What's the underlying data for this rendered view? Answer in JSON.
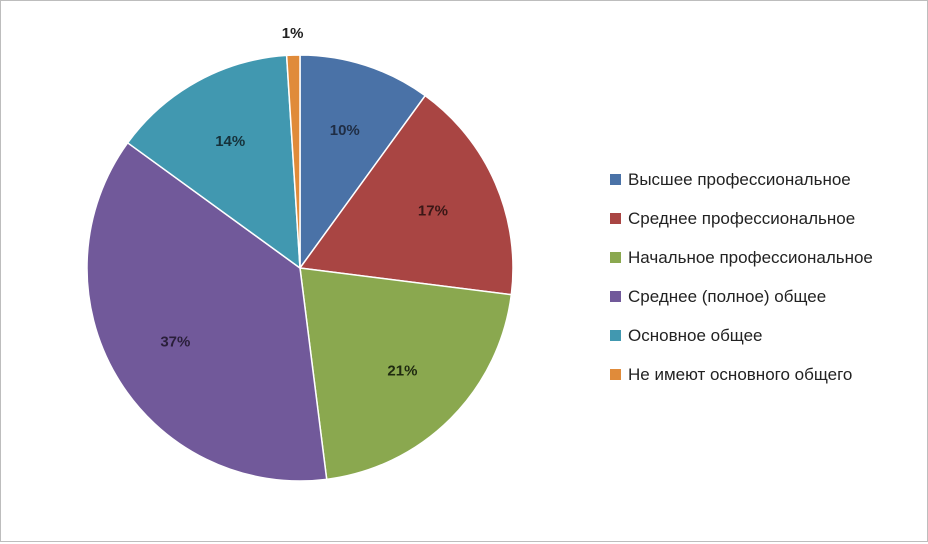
{
  "chart_data": {
    "type": "pie",
    "categories": [
      "Высшее профессиональное",
      "Среднее профессиональное",
      "Начальное профессиональное",
      "Среднее (полное) общее",
      "Основное общее",
      "Не имеют основного общего"
    ],
    "values": [
      10,
      17,
      21,
      37,
      14,
      1
    ],
    "value_labels": [
      "10%",
      "17%",
      "21%",
      "37%",
      "14%",
      "1%"
    ],
    "colors": [
      "#4a72a7",
      "#a94543",
      "#8aa84f",
      "#71599a",
      "#4198b0",
      "#e08b3a"
    ],
    "legend_position": "right",
    "start_angle": "top, clockwise"
  }
}
